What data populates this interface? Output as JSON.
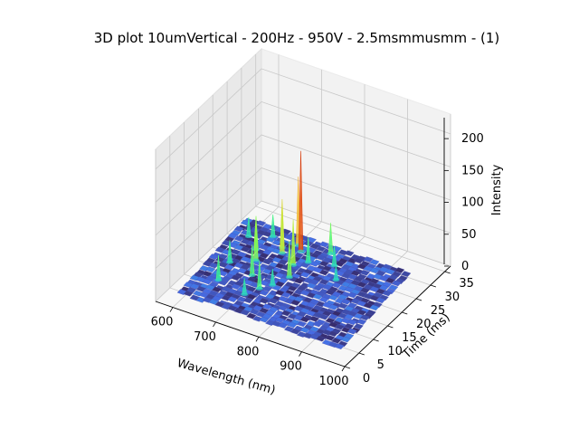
{
  "chart_data": {
    "type": "surface",
    "title": "3D plot 10umVertical - 200Hz - 950V - 2.5msmmusmm - (1)",
    "xlabel": "Wavelength (nm)",
    "ylabel": "Time (ms)",
    "zlabel": "Intensity",
    "x_ticks": [
      "600",
      "700",
      "800",
      "900",
      "1000"
    ],
    "y_ticks": [
      "0",
      "5",
      "10",
      "15",
      "20",
      "25",
      "30",
      "35"
    ],
    "z_ticks": [
      "0",
      "50",
      "100",
      "150",
      "200"
    ],
    "xlim": [
      560,
      1000
    ],
    "ylim": [
      0,
      37
    ],
    "zlim": [
      0,
      230
    ],
    "colormap": "turbo",
    "grid": true,
    "peaks": [
      {
        "x": 735,
        "y": 31,
        "z": 175
      },
      {
        "x": 718,
        "y": 33,
        "z": 120
      },
      {
        "x": 700,
        "y": 28,
        "z": 95
      },
      {
        "x": 745,
        "y": 25,
        "z": 80
      },
      {
        "x": 690,
        "y": 30,
        "z": 75
      },
      {
        "x": 660,
        "y": 22,
        "z": 70
      },
      {
        "x": 760,
        "y": 20,
        "z": 65
      },
      {
        "x": 640,
        "y": 26,
        "z": 60
      },
      {
        "x": 800,
        "y": 34,
        "z": 55
      },
      {
        "x": 680,
        "y": 16,
        "z": 55
      },
      {
        "x": 720,
        "y": 12,
        "z": 50
      },
      {
        "x": 620,
        "y": 10,
        "z": 45
      },
      {
        "x": 770,
        "y": 28,
        "z": 45
      },
      {
        "x": 650,
        "y": 33,
        "z": 40
      },
      {
        "x": 610,
        "y": 18,
        "z": 40
      },
      {
        "x": 830,
        "y": 30,
        "z": 35
      },
      {
        "x": 700,
        "y": 8,
        "z": 30
      },
      {
        "x": 740,
        "y": 15,
        "z": 30
      },
      {
        "x": 860,
        "y": 25,
        "z": 25
      },
      {
        "x": 600,
        "y": 30,
        "z": 35
      }
    ]
  }
}
